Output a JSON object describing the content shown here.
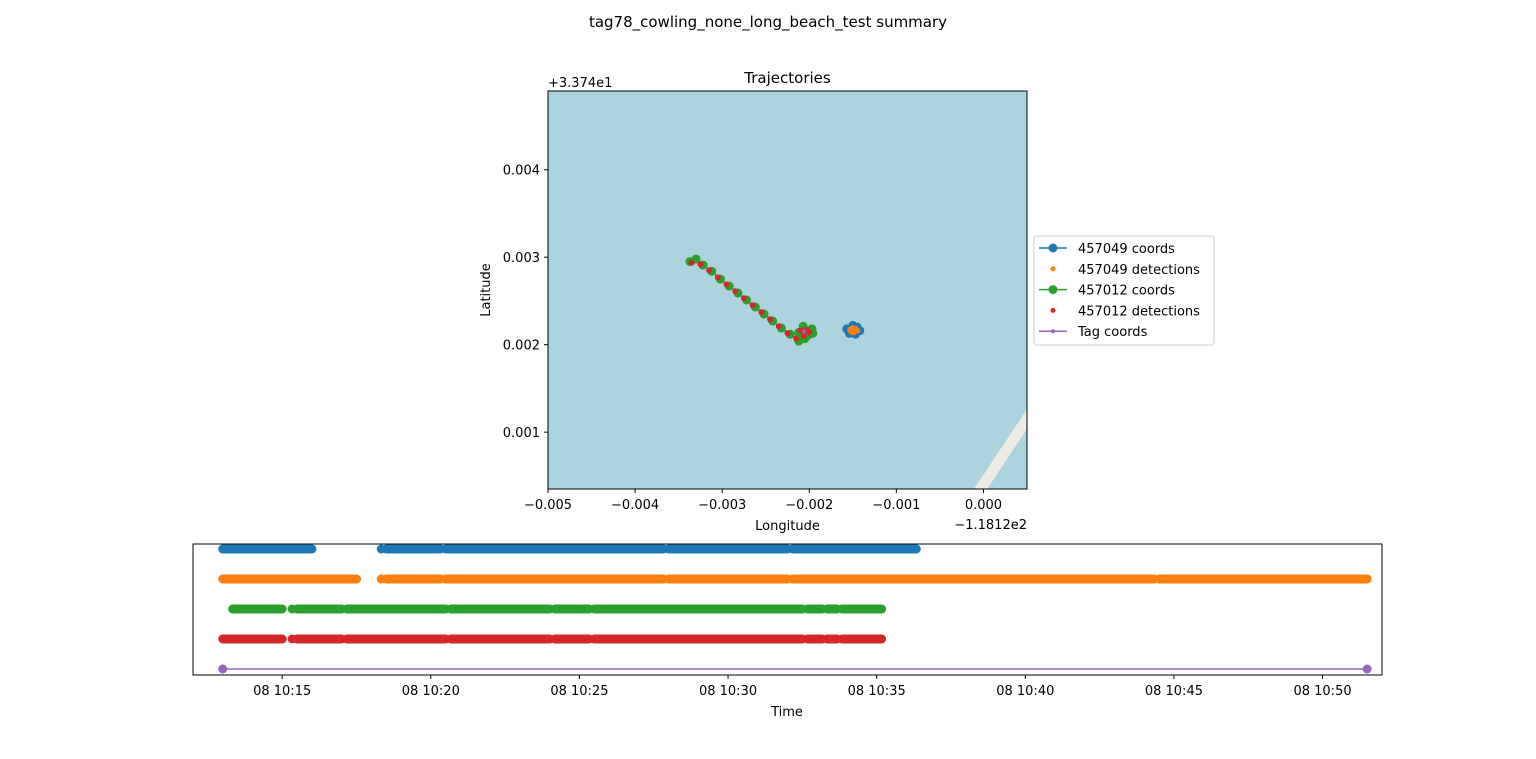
{
  "figure": {
    "suptitle": "tag78_cowling_none_long_beach_test summary"
  },
  "chart_data": [
    {
      "type": "scatter",
      "title": "Trajectories",
      "xlabel": "Longitude",
      "ylabel": "Latitude",
      "x_offset_label": "−1.1812e2",
      "y_offset_label": "+3.374e1",
      "xlim": [
        -0.005,
        0.0005
      ],
      "ylim": [
        0.00035,
        0.0049
      ],
      "xticks": [
        -0.005,
        -0.004,
        -0.003,
        -0.002,
        -0.001,
        0.0
      ],
      "xtick_labels": [
        "−0.005",
        "−0.004",
        "−0.003",
        "−0.002",
        "−0.001",
        "0.000"
      ],
      "yticks": [
        0.001,
        0.002,
        0.003,
        0.004
      ],
      "ytick_labels": [
        "0.001",
        "0.002",
        "0.003",
        "0.004"
      ],
      "grid": false,
      "background_color": "#add3df",
      "land_color": "#edebe5",
      "legend_placement": "outside-right",
      "series": [
        {
          "name": "457049 coords",
          "color": "#1f77b4",
          "style": "line-marker",
          "points": [
            [
              -0.00155,
              0.00217
            ],
            [
              -0.0015,
              0.00222
            ],
            [
              -0.00145,
              0.0022
            ],
            [
              -0.00142,
              0.00216
            ],
            [
              -0.00147,
              0.00212
            ],
            [
              -0.00154,
              0.00213
            ],
            [
              -0.00157,
              0.00218
            ]
          ]
        },
        {
          "name": "457049 detections",
          "color": "#ff7f0e",
          "style": "marker",
          "points": [
            [
              -0.00153,
              0.00217
            ],
            [
              -0.0015,
              0.00219
            ],
            [
              -0.00147,
              0.00218
            ],
            [
              -0.00145,
              0.00216
            ],
            [
              -0.00149,
              0.00214
            ],
            [
              -0.00152,
              0.00215
            ],
            [
              -0.00148,
              0.00217
            ]
          ]
        },
        {
          "name": "457012 coords",
          "color": "#2ca02c",
          "style": "line-marker",
          "points": [
            [
              -0.00337,
              0.00295
            ],
            [
              -0.0033,
              0.00298
            ],
            [
              -0.00322,
              0.00291
            ],
            [
              -0.00312,
              0.00284
            ],
            [
              -0.00302,
              0.00275
            ],
            [
              -0.00292,
              0.00267
            ],
            [
              -0.00282,
              0.00259
            ],
            [
              -0.00272,
              0.00251
            ],
            [
              -0.00262,
              0.00243
            ],
            [
              -0.00252,
              0.00235
            ],
            [
              -0.00242,
              0.00227
            ],
            [
              -0.00232,
              0.00219
            ],
            [
              -0.00222,
              0.00212
            ],
            [
              -0.00212,
              0.00204
            ],
            [
              -0.00205,
              0.00207
            ],
            [
              -0.00196,
              0.00213
            ],
            [
              -0.00197,
              0.00218
            ],
            [
              -0.00207,
              0.00221
            ],
            [
              -0.00212,
              0.00214
            ],
            [
              -0.00208,
              0.00209
            ],
            [
              -0.00201,
              0.00211
            ]
          ]
        },
        {
          "name": "457012 detections",
          "color": "#d62728",
          "style": "marker",
          "points": [
            [
              -0.00335,
              0.00294
            ],
            [
              -0.00325,
              0.00292
            ],
            [
              -0.00315,
              0.00285
            ],
            [
              -0.00305,
              0.00277
            ],
            [
              -0.00295,
              0.00269
            ],
            [
              -0.00285,
              0.00261
            ],
            [
              -0.00275,
              0.00253
            ],
            [
              -0.00265,
              0.00245
            ],
            [
              -0.00255,
              0.00237
            ],
            [
              -0.00245,
              0.00229
            ],
            [
              -0.00235,
              0.00221
            ],
            [
              -0.00225,
              0.00213
            ],
            [
              -0.00215,
              0.00207
            ],
            [
              -0.00206,
              0.0021
            ],
            [
              -0.002,
              0.00214
            ],
            [
              -0.00203,
              0.00217
            ],
            [
              -0.0021,
              0.00216
            ]
          ]
        },
        {
          "name": "Tag coords",
          "color": "#9467bd",
          "style": "line-small-marker",
          "points": [
            [
              -0.00206,
              0.00215
            ]
          ]
        }
      ]
    },
    {
      "type": "timeline",
      "xlabel": "Time",
      "x_start": "08 10:12:00",
      "x_end": "08 10:52:00",
      "xticks": [
        "08 10:15",
        "08 10:20",
        "08 10:25",
        "08 10:30",
        "08 10:35",
        "08 10:40",
        "08 10:45",
        "08 10:50"
      ],
      "yticks_visible": false,
      "rows": [
        {
          "name": "457049 coords",
          "color": "#1f77b4",
          "segments": [
            [
              "10:13:00",
              "10:16:00"
            ],
            [
              "10:18:20",
              "10:18:20"
            ],
            [
              "10:18:30",
              "10:20:20"
            ],
            [
              "10:20:30",
              "10:27:50"
            ],
            [
              "10:28:00",
              "10:32:00"
            ],
            [
              "10:32:10",
              "10:36:20"
            ]
          ]
        },
        {
          "name": "457049 detections",
          "color": "#ff7f0e",
          "segments": [
            [
              "10:13:00",
              "10:17:30"
            ],
            [
              "10:18:20",
              "10:18:20"
            ],
            [
              "10:18:30",
              "10:20:20"
            ],
            [
              "10:20:30",
              "10:27:50"
            ],
            [
              "10:28:00",
              "10:32:00"
            ],
            [
              "10:32:10",
              "10:44:20"
            ],
            [
              "10:44:30",
              "10:51:30"
            ]
          ]
        },
        {
          "name": "457012 coords",
          "color": "#2ca02c",
          "segments": [
            [
              "10:13:20",
              "10:15:00"
            ],
            [
              "10:15:20",
              "10:15:20"
            ],
            [
              "10:15:30",
              "10:17:00"
            ],
            [
              "10:17:10",
              "10:20:30"
            ],
            [
              "10:20:40",
              "10:24:00"
            ],
            [
              "10:24:10",
              "10:25:20"
            ],
            [
              "10:25:30",
              "10:32:30"
            ],
            [
              "10:32:40",
              "10:33:10"
            ],
            [
              "10:33:20",
              "10:33:40"
            ],
            [
              "10:33:50",
              "10:35:10"
            ]
          ]
        },
        {
          "name": "457012 detections",
          "color": "#d62728",
          "segments": [
            [
              "10:13:00",
              "10:15:00"
            ],
            [
              "10:15:20",
              "10:15:20"
            ],
            [
              "10:15:30",
              "10:17:00"
            ],
            [
              "10:17:10",
              "10:20:30"
            ],
            [
              "10:20:40",
              "10:24:00"
            ],
            [
              "10:24:10",
              "10:25:20"
            ],
            [
              "10:25:30",
              "10:32:30"
            ],
            [
              "10:32:40",
              "10:33:10"
            ],
            [
              "10:33:20",
              "10:33:40"
            ],
            [
              "10:33:50",
              "10:35:10"
            ]
          ]
        },
        {
          "name": "Tag coords",
          "color": "#9467bd",
          "segments": [
            [
              "10:13:00",
              "10:51:30"
            ]
          ],
          "endpoints_only": true
        }
      ]
    }
  ]
}
